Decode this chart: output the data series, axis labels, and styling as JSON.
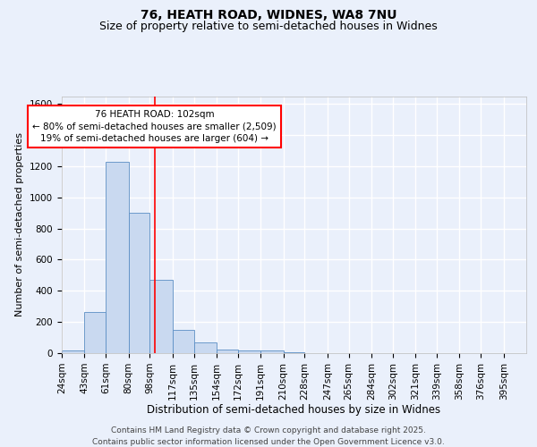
{
  "title1": "76, HEATH ROAD, WIDNES, WA8 7NU",
  "title2": "Size of property relative to semi-detached houses in Widnes",
  "xlabel": "Distribution of semi-detached houses by size in Widnes",
  "ylabel": "Number of semi-detached properties",
  "footer1": "Contains HM Land Registry data © Crown copyright and database right 2025.",
  "footer2": "Contains public sector information licensed under the Open Government Licence v3.0.",
  "bin_labels": [
    "24sqm",
    "43sqm",
    "61sqm",
    "80sqm",
    "98sqm",
    "117sqm",
    "135sqm",
    "154sqm",
    "172sqm",
    "191sqm",
    "210sqm",
    "228sqm",
    "247sqm",
    "265sqm",
    "284sqm",
    "302sqm",
    "321sqm",
    "339sqm",
    "358sqm",
    "376sqm",
    "395sqm"
  ],
  "bin_edges": [
    24,
    43,
    61,
    80,
    98,
    117,
    135,
    154,
    172,
    191,
    210,
    228,
    247,
    265,
    284,
    302,
    321,
    339,
    358,
    376,
    395
  ],
  "bar_heights": [
    20,
    265,
    1230,
    900,
    470,
    150,
    70,
    25,
    20,
    15,
    5,
    0,
    0,
    0,
    0,
    0,
    0,
    0,
    0,
    0
  ],
  "bar_color": "#c9d9f0",
  "bar_edge_color": "#5b8ec4",
  "vline_x": 102,
  "vline_color": "red",
  "annot_line1": "76 HEATH ROAD: 102sqm",
  "annot_line2": "← 80% of semi-detached houses are smaller (2,509)",
  "annot_line3": "19% of semi-detached houses are larger (604) →",
  "annot_box_color": "white",
  "annot_box_edge": "red",
  "ylim": [
    0,
    1650
  ],
  "yticks": [
    0,
    200,
    400,
    600,
    800,
    1000,
    1200,
    1400,
    1600
  ],
  "bg_color": "#eaf0fb",
  "plot_bg": "#eaf0fb",
  "grid_color": "white",
  "title1_fontsize": 10,
  "title2_fontsize": 9,
  "xlabel_fontsize": 8.5,
  "ylabel_fontsize": 8,
  "tick_fontsize": 7.5,
  "annot_fontsize": 7.5,
  "footer_fontsize": 6.5
}
